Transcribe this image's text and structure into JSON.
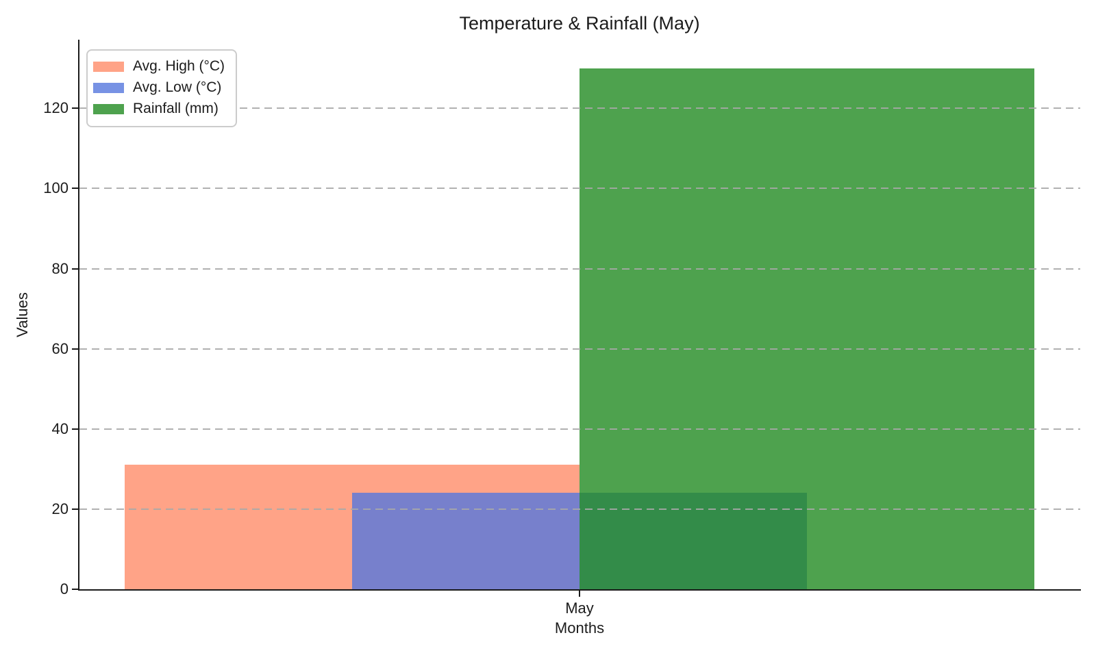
{
  "chart_data": {
    "type": "bar",
    "title": "Temperature & Rainfall (May)",
    "xlabel": "Months",
    "ylabel": "Values",
    "categories": [
      "May"
    ],
    "series": [
      {
        "name": "Avg. High (°C)",
        "values": [
          31
        ],
        "color": "rgba(255,140,105,0.8)"
      },
      {
        "name": "Avg. Low (°C)",
        "values": [
          24
        ],
        "color": "rgba(85,119,221,0.8)"
      },
      {
        "name": "Rainfall (mm)",
        "values": [
          130
        ],
        "color": "rgba(34,139,34,0.8)"
      }
    ],
    "yticks": [
      0,
      20,
      40,
      60,
      80,
      100,
      120
    ],
    "ylim": [
      0,
      137
    ],
    "grid": {
      "axis": "y",
      "style": "dashed",
      "color": "#b0b0b0"
    },
    "legend_position": "upper-left",
    "bar_style": "overlapping translucent bars (alpha 0.8), later series drawn on top"
  }
}
